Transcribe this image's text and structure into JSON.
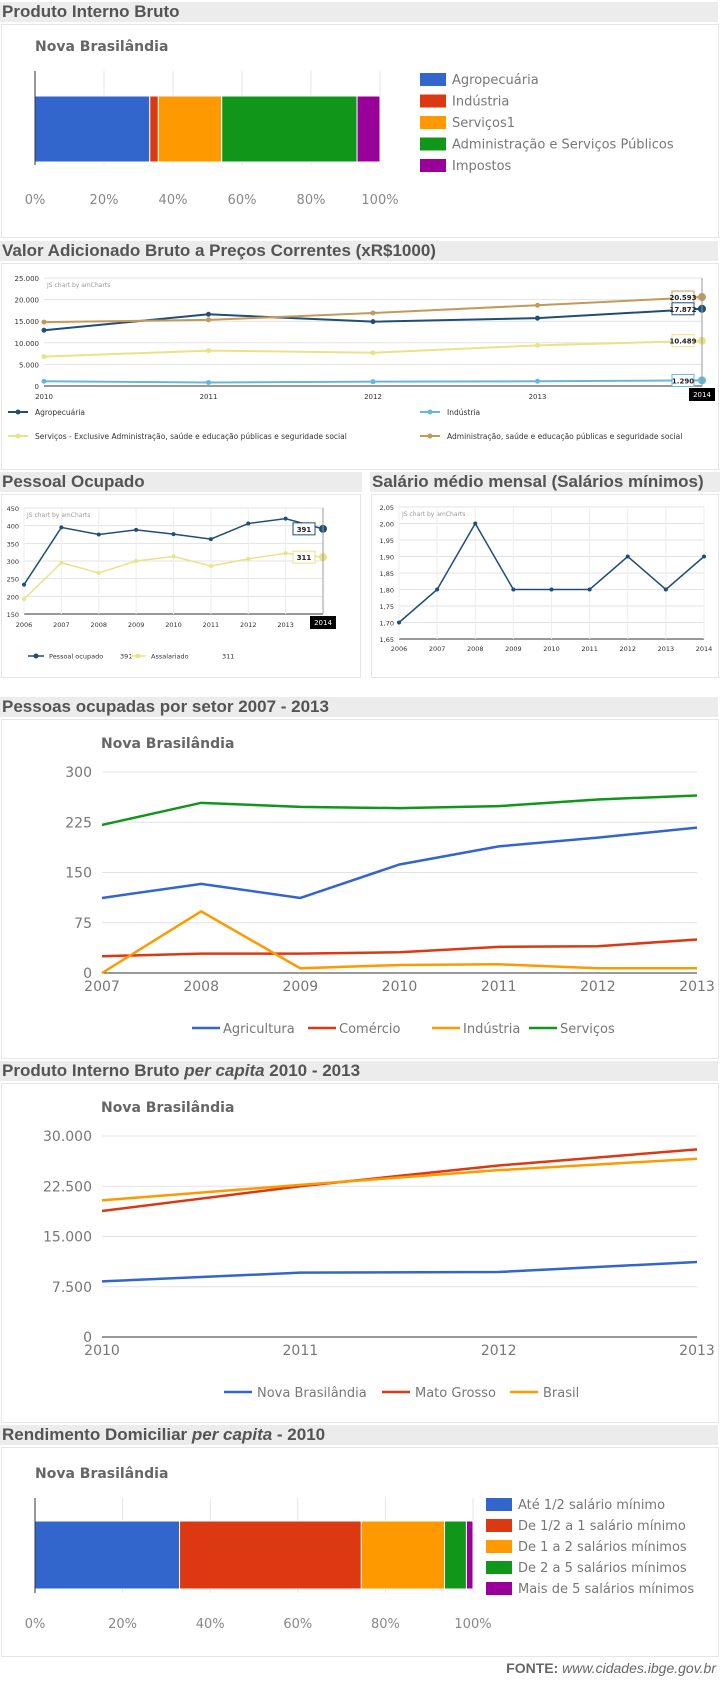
{
  "sections": {
    "pib": "Produto Interno Bruto",
    "vab": "Valor Adicionado Bruto a Preços Correntes (xR$1000)",
    "pessoal": "Pessoal Ocupado",
    "salario": "Salário médio mensal (Salários mínimos)",
    "setor": "Pessoas ocupadas por setor 2007 - 2013",
    "percapita_pre": "Produto Interno Bruto ",
    "percapita_em": "per capita",
    "percapita_post": " 2010 - 2013",
    "rend_pre": "Rendimento Domiciliar ",
    "rend_em": "per capita",
    "rend_post": " - 2010"
  },
  "footer": {
    "label": "FONTE: ",
    "source": "www.cidades.ibge.gov.br"
  },
  "colors": {
    "blue": "#3366cc",
    "red": "#dc3912",
    "orange": "#ff9900",
    "green": "#109618",
    "purple": "#990099",
    "navy": "#1f4e79",
    "cyan": "#67b7dc",
    "yellow": "#e8e486",
    "tan": "#c49a5a"
  },
  "chart_data": [
    {
      "id": "pib",
      "type": "bar",
      "stacked": "percent",
      "title": "Nova Brasilândia",
      "legend": [
        "Agropecuária",
        "Indústria",
        "Serviços1",
        "Administração e Serviços Públicos",
        "Impostos"
      ],
      "values": [
        33.5,
        2.5,
        18.5,
        39.5,
        6.7
      ],
      "xticks": [
        "0%",
        "20%",
        "40%",
        "60%",
        "80%",
        "100%"
      ]
    },
    {
      "id": "vab",
      "type": "line",
      "credit": "JS chart by amCharts",
      "x": [
        "2010",
        "2011",
        "2012",
        "2013",
        "2014"
      ],
      "yticks": [
        "0",
        "5.000",
        "10.000",
        "15.000",
        "20.000",
        "25.000"
      ],
      "ylim": [
        0,
        25000
      ],
      "series": [
        {
          "name": "Agropecuária",
          "values": [
            12900,
            16600,
            14900,
            15700,
            17872
          ]
        },
        {
          "name": "Indústria",
          "values": [
            1100,
            800,
            1000,
            1100,
            1290
          ]
        },
        {
          "name": "Serviços - Exclusive Administração, saúde e educação públicas e seguridade social",
          "values": [
            6800,
            8200,
            7700,
            9400,
            10489
          ]
        },
        {
          "name": "Administração, saúde e educação públicas e seguridade social",
          "values": [
            14800,
            15300,
            16900,
            18700,
            20593
          ]
        }
      ],
      "balloons": [
        "20.593",
        "17.872",
        "10.489",
        "1.290"
      ],
      "cursor_label": "2014"
    },
    {
      "id": "pessoal",
      "type": "line",
      "credit": "JS chart by amCharts",
      "x": [
        "2006",
        "2007",
        "2008",
        "2009",
        "2010",
        "2011",
        "2012",
        "2013",
        "2014"
      ],
      "yticks": [
        "150",
        "200",
        "250",
        "300",
        "350",
        "400",
        "450"
      ],
      "ylim": [
        150,
        450
      ],
      "series": [
        {
          "name": "Pessoal ocupado",
          "values": [
            233,
            395,
            375,
            388,
            376,
            362,
            406,
            420,
            391
          ],
          "legend_value": "391"
        },
        {
          "name": "Assalariado",
          "values": [
            192,
            295,
            266,
            300,
            313,
            286,
            306,
            322,
            311
          ],
          "legend_value": "311"
        }
      ],
      "balloons": [
        "391",
        "311"
      ],
      "cursor_label": "2014"
    },
    {
      "id": "salario",
      "type": "line",
      "credit": "JS chart by amCharts",
      "x": [
        "2006",
        "2007",
        "2008",
        "2009",
        "2010",
        "2011",
        "2012",
        "2013",
        "2014"
      ],
      "yticks": [
        "1,65",
        "1,70",
        "1,75",
        "1,80",
        "1,85",
        "1,90",
        "1,95",
        "2,00",
        "2,05"
      ],
      "ylim": [
        1.65,
        2.05
      ],
      "series": [
        {
          "values": [
            1.7,
            1.8,
            2.0,
            1.8,
            1.8,
            1.8,
            1.9,
            1.8,
            1.9
          ]
        }
      ]
    },
    {
      "id": "setor",
      "type": "line",
      "title": "Nova Brasilândia",
      "x": [
        "2007",
        "2008",
        "2009",
        "2010",
        "2011",
        "2012",
        "2013"
      ],
      "yticks": [
        "0",
        "75",
        "150",
        "225",
        "300"
      ],
      "ylim": [
        0,
        300
      ],
      "series": [
        {
          "name": "Agricultura",
          "values": [
            112,
            133,
            112,
            162,
            189,
            202,
            217
          ]
        },
        {
          "name": "Comércio",
          "values": [
            25,
            29,
            29,
            31,
            39,
            40,
            50
          ]
        },
        {
          "name": "Indústria",
          "values": [
            0,
            92,
            7,
            12,
            13,
            7,
            7
          ]
        },
        {
          "name": "Serviços",
          "values": [
            221,
            254,
            248,
            246,
            249,
            259,
            265
          ]
        }
      ]
    },
    {
      "id": "percapita",
      "type": "line",
      "title": "Nova Brasilândia",
      "x": [
        "2010",
        "2011",
        "2012",
        "2013"
      ],
      "yticks": [
        "0",
        "7.500",
        "15.000",
        "22.500",
        "30.000"
      ],
      "ylim": [
        0,
        30000
      ],
      "series": [
        {
          "name": "Nova Brasilândia",
          "values": [
            8300,
            9600,
            9700,
            11200
          ]
        },
        {
          "name": "Mato Grosso",
          "values": [
            18800,
            22500,
            25600,
            28000
          ]
        },
        {
          "name": "Brasil",
          "values": [
            20400,
            22700,
            24900,
            26600
          ]
        }
      ]
    },
    {
      "id": "rendimento",
      "type": "bar",
      "stacked": "percent",
      "title": "Nova Brasilândia",
      "legend": [
        "Até 1/2 salário mínimo",
        "De 1/2 a 1 salário mínimo",
        "De 1 a 2 salários mínimos",
        "De 2 a 5 salários mínimos",
        "Mais de 5 salários mínimos"
      ],
      "values": [
        33,
        41.5,
        19,
        5,
        1.5
      ],
      "xticks": [
        "0%",
        "20%",
        "40%",
        "60%",
        "80%",
        "100%"
      ]
    }
  ]
}
